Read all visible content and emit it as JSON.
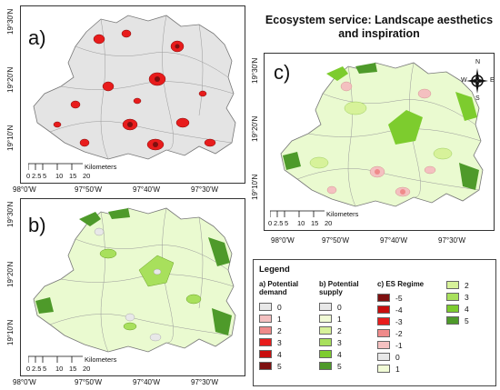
{
  "title": "Ecosystem service: Landscape aesthetics and inspiration",
  "panels": {
    "a": {
      "letter": "a)"
    },
    "b": {
      "letter": "b)"
    },
    "c": {
      "letter": "c)"
    }
  },
  "coords": {
    "lat": [
      "19°30'N",
      "19°20'N",
      "19°10'N"
    ],
    "lon": [
      "98°0'W",
      "97°50'W",
      "97°40'W",
      "97°30'W"
    ]
  },
  "scalebar": {
    "ticks": [
      "0",
      "2.5",
      "5",
      "10",
      "15",
      "20"
    ],
    "unit": "Kilometers"
  },
  "legend": {
    "title": "Legend",
    "a": {
      "heading": "a) Potential demand",
      "items": [
        "0",
        "1",
        "2",
        "3",
        "4",
        "5"
      ],
      "colors": [
        "#e8e8e8",
        "#f4c0c0",
        "#ef8a8a",
        "#e81c1c",
        "#c80e0e",
        "#7e1010"
      ]
    },
    "b": {
      "heading": "b) Potential supply",
      "items": [
        "0",
        "1",
        "2",
        "3",
        "4",
        "5"
      ],
      "colors": [
        "#e8e8e8",
        "#f1fbd6",
        "#d7f29a",
        "#a8e05c",
        "#7dcc2e",
        "#4e9a2a"
      ]
    },
    "c": {
      "heading": "c) ES Regime",
      "items": [
        "-5",
        "-4",
        "-3",
        "-2",
        "-1",
        "0",
        "1"
      ],
      "colors": [
        "#7e1010",
        "#c80e0e",
        "#e81c1c",
        "#ef8a8a",
        "#f4c0c0",
        "#e8e8e8",
        "#f1fbd6"
      ]
    },
    "c2": {
      "items": [
        "2",
        "3",
        "4",
        "5"
      ],
      "colors": [
        "#d7f29a",
        "#a8e05c",
        "#7dcc2e",
        "#4e9a2a"
      ]
    }
  },
  "north_arrow": {
    "n": "N",
    "s": "S",
    "e": "E",
    "w": "W"
  }
}
